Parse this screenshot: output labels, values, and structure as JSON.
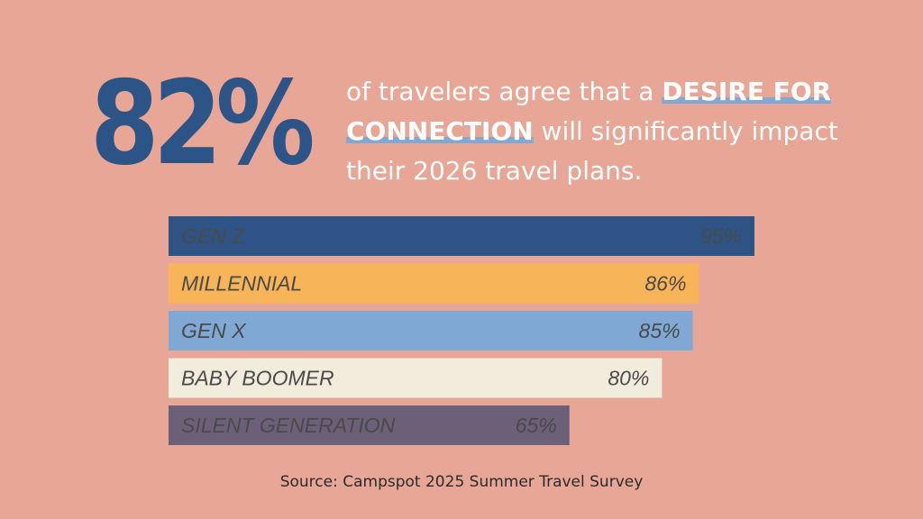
{
  "headline": {
    "stat": "82%",
    "text_before": "of travelers agree that a ",
    "highlight": "DESIRE FOR CONNECTION",
    "text_after": " will significantly impact their 2026 travel plans."
  },
  "chart_data": {
    "type": "bar",
    "orientation": "horizontal",
    "categories": [
      "GEN Z",
      "MILLENNIAL",
      "GEN X",
      "BABY BOOMER",
      "SILENT GENERATION"
    ],
    "values": [
      95,
      86,
      85,
      80,
      65
    ],
    "value_labels": [
      "95%",
      "86%",
      "85%",
      "80%",
      "65%"
    ],
    "colors": [
      "#2e5485",
      "#f8b458",
      "#80a8d4",
      "#f2ecdc",
      "#6b6078"
    ],
    "label_colors": [
      "#f2ecdc",
      "#4a4a4a",
      "#4a4a4a",
      "#4a4a4a",
      "#f2ecdc"
    ],
    "xlim": [
      0,
      100
    ]
  },
  "footer": {
    "source": "Source: Campspot 2025 Summer Travel Survey"
  }
}
